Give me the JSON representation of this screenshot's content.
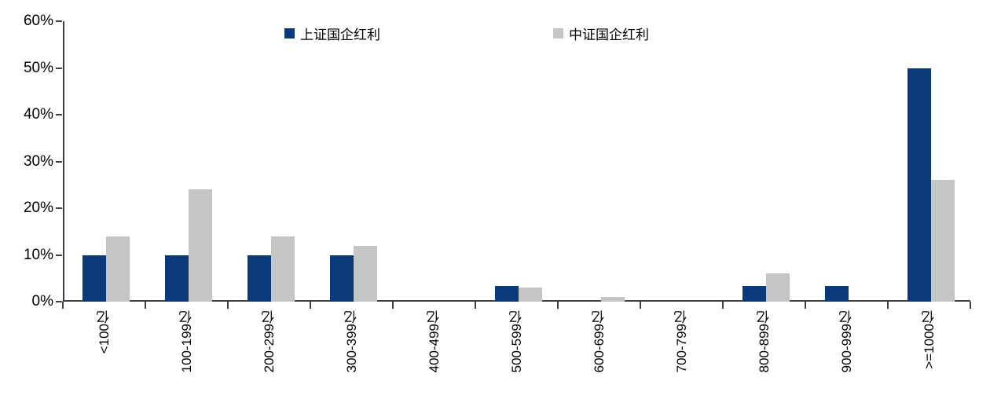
{
  "chart_data": {
    "type": "bar",
    "title": "",
    "xlabel": "",
    "ylabel": "",
    "categories": [
      "<100亿",
      "100-199亿",
      "200-299亿",
      "300-399亿",
      "400-499亿",
      "500-599亿",
      "600-699亿",
      "700-799亿",
      "800-899亿",
      "900-999亿",
      ">=1000亿"
    ],
    "series": [
      {
        "name": "上证国企红利",
        "color": "#0B3A7C",
        "values": [
          10,
          10,
          10,
          10,
          0,
          3.33,
          0,
          0,
          3.33,
          3.33,
          50
        ]
      },
      {
        "name": "中证国企红利",
        "color": "#C5C5C5",
        "values": [
          14,
          24,
          14,
          12,
          0,
          3,
          1,
          0,
          6,
          0,
          26
        ]
      }
    ],
    "ylim": [
      0,
      60
    ],
    "yticks": [
      0,
      10,
      20,
      30,
      40,
      50,
      60
    ],
    "ytick_labels": [
      "0%",
      "10%",
      "20%",
      "30%",
      "40%",
      "50%",
      "60%"
    ],
    "legend_position": "top",
    "grid": false,
    "axis_color": "#404040",
    "text_color": "#000000",
    "background_color": "#FFFFFF"
  }
}
